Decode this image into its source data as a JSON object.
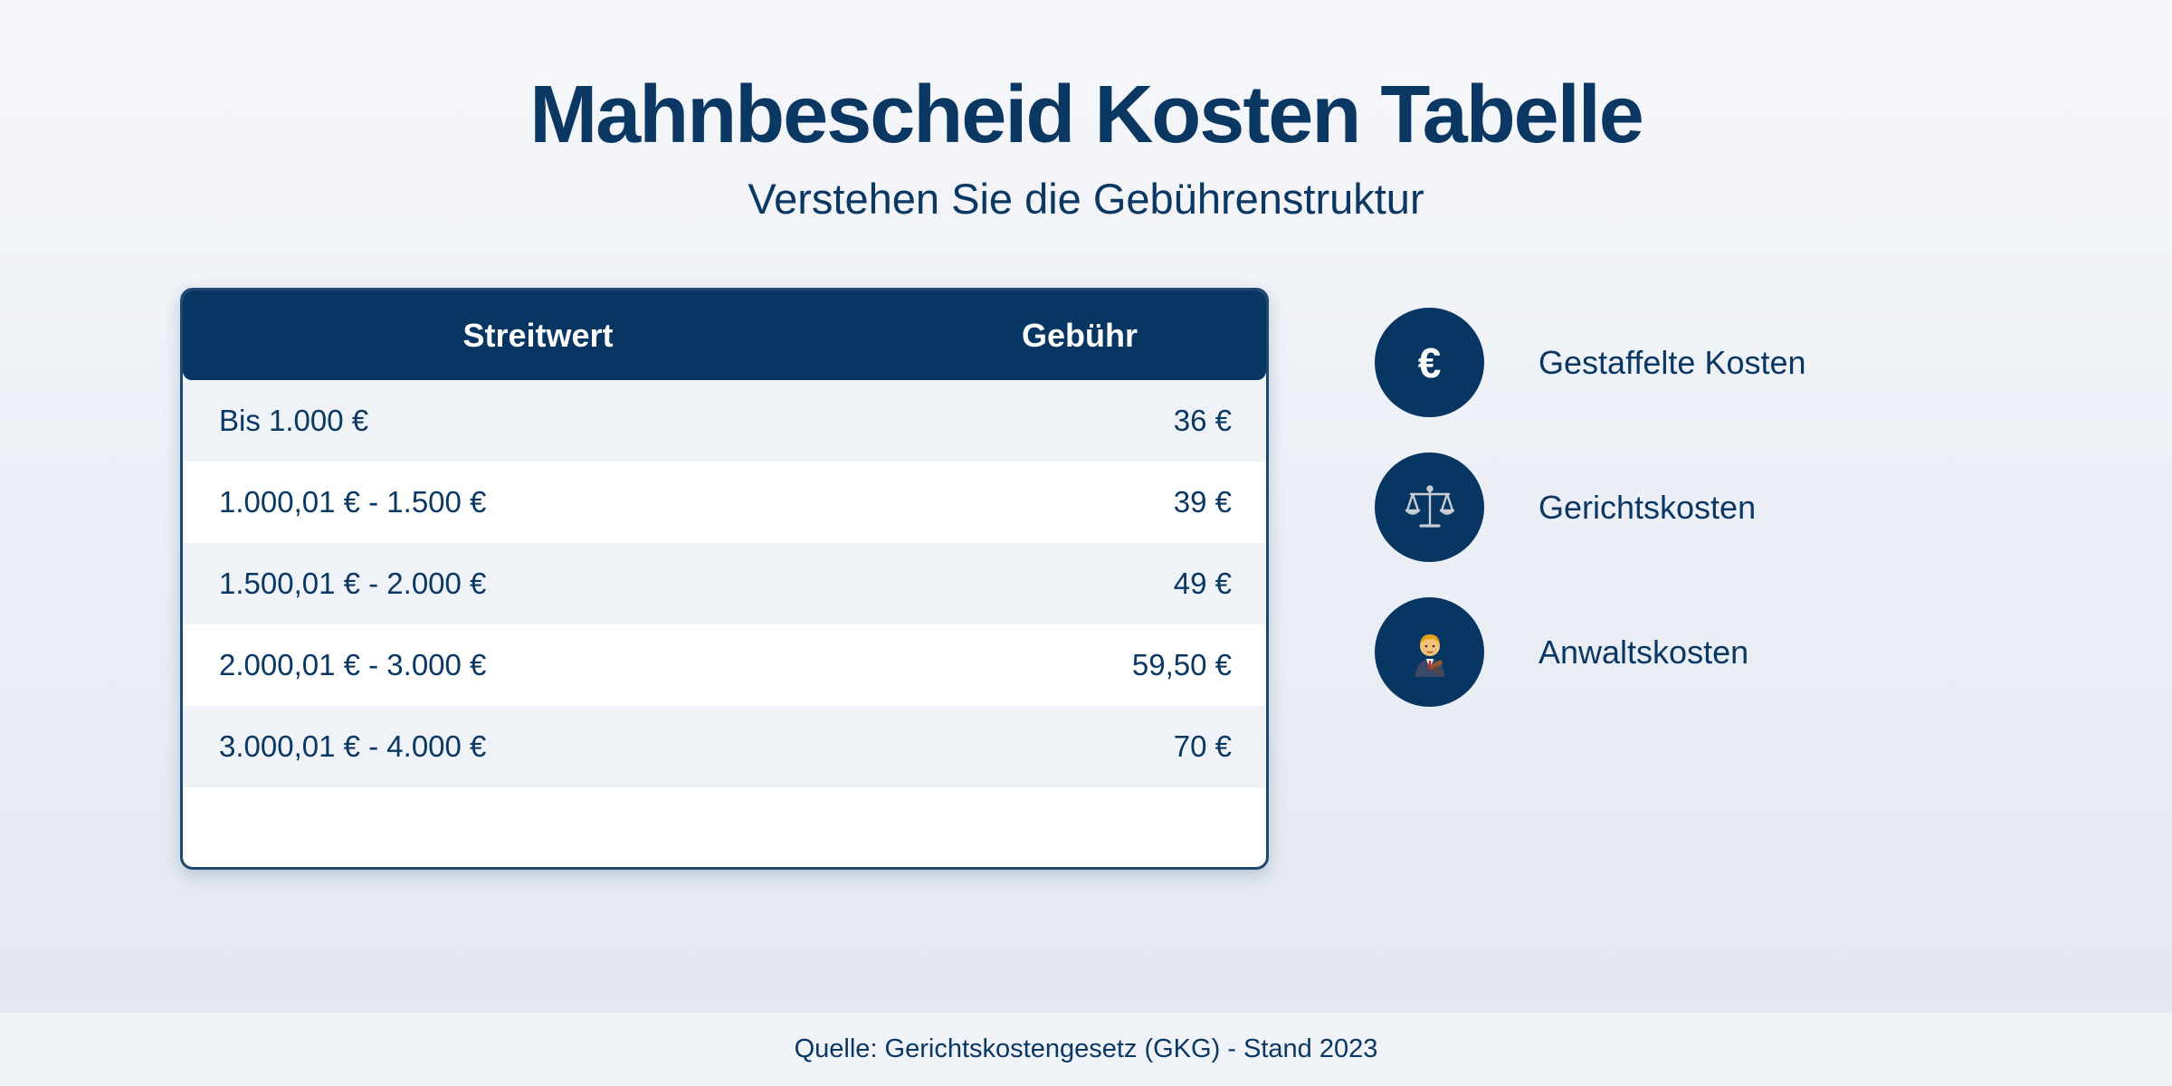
{
  "header": {
    "title": "Mahnbescheid Kosten Tabelle",
    "subtitle": "Verstehen Sie die Gebührenstruktur"
  },
  "table": {
    "columns": [
      "Streitwert",
      "Gebühr"
    ],
    "rows": [
      {
        "range": "Bis 1.000 €",
        "fee": "36 €"
      },
      {
        "range": "1.000,01 € - 1.500 €",
        "fee": "39 €"
      },
      {
        "range": "1.500,01 € - 2.000 €",
        "fee": "49 €"
      },
      {
        "range": "2.000,01 € - 3.000 €",
        "fee": "59,50 €"
      },
      {
        "range": "3.000,01 € - 4.000 €",
        "fee": "70 €"
      }
    ]
  },
  "features": [
    {
      "icon": "euro-icon",
      "label": "Gestaffelte Kosten"
    },
    {
      "icon": "scales-icon",
      "label": "Gerichtskosten"
    },
    {
      "icon": "lawyer-icon",
      "label": "Anwaltskosten"
    }
  ],
  "footer": {
    "source": "Quelle: Gerichtskostengesetz (GKG) - Stand 2023"
  },
  "colors": {
    "primary": "#083662",
    "text": "#0b3763",
    "row_alt": "#eff3f8"
  }
}
